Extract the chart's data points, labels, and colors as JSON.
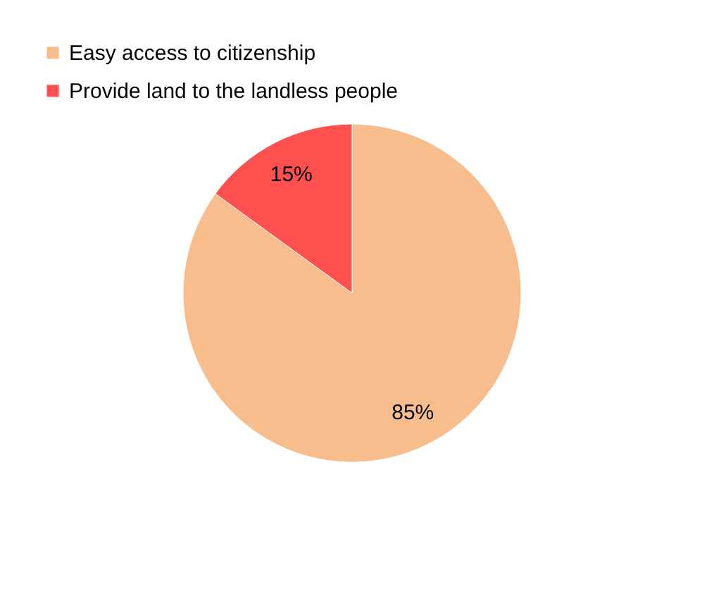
{
  "chart_data": {
    "type": "pie",
    "categories": [
      "Easy access to citizenship",
      "Provide land to the landless people"
    ],
    "values": [
      85,
      15
    ],
    "colors": [
      "#f7bd8c",
      "#ff5050"
    ],
    "value_labels": [
      "85%",
      "15%"
    ],
    "legend": "top left"
  }
}
